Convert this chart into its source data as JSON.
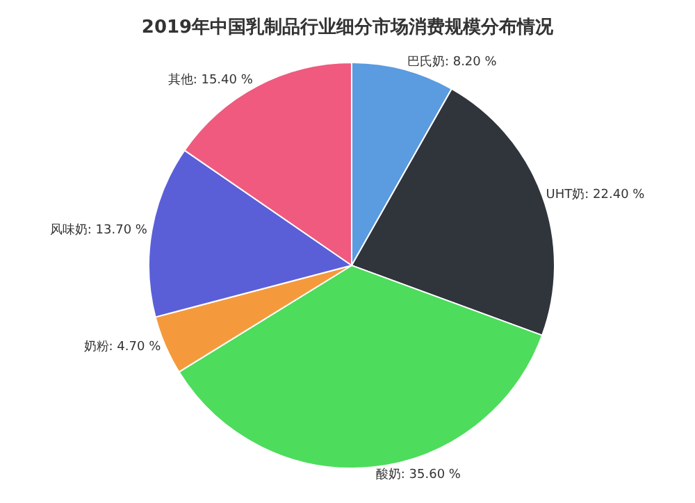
{
  "chart_data": {
    "type": "pie",
    "title": "2019年中国乳制品行业细分市场消费规模分布情况",
    "categories": [
      "巴氏奶",
      "UHT奶",
      "酸奶",
      "奶粉",
      "风味奶",
      "其他"
    ],
    "values": [
      8.2,
      22.4,
      35.6,
      4.7,
      13.7,
      15.4
    ],
    "value_labels": [
      "8.20 %",
      "22.40 %",
      "35.60 %",
      "4.70 %",
      "13.70 %",
      "15.40 %"
    ],
    "colors": [
      "#5b9be0",
      "#30343b",
      "#4ddc5c",
      "#f59a3c",
      "#5a5fd8",
      "#ef5a7e"
    ],
    "legend": false
  }
}
